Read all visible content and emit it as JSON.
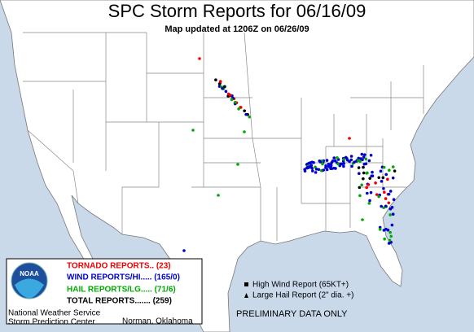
{
  "header": {
    "title": "SPC Storm Reports for 06/16/09",
    "subtitle": "Map updated at 1206Z on 06/26/09"
  },
  "legend": {
    "logo": "NOAA",
    "tornado": "TORNADO REPORTS.. (23)",
    "wind": "WIND REPORTS/HI..... (165/0)",
    "hail": "HAIL REPORTS/LG..... (71/6)",
    "total": "TOTAL REPORTS....... (259)",
    "agency": "National Weather Service",
    "center": "Storm Prediction Center",
    "location": "Norman, Oklahoma"
  },
  "key": {
    "high_wind": "High Wind Report (65KT+)",
    "large_hail": "Large Hail Report (2\" dia. +)"
  },
  "footer": {
    "note": "PRELIMINARY DATA ONLY"
  }
}
